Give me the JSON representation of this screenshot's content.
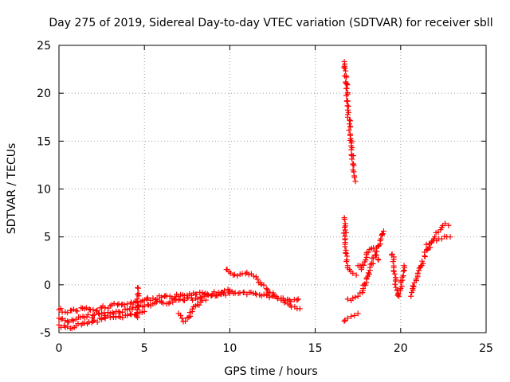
{
  "chart_data": {
    "type": "scatter",
    "title": "Day 275 of 2019, Sidereal Day-to-day VTEC variation (SDTVAR) for receiver sbll",
    "xlabel": "GPS time / hours",
    "ylabel": "SDTVAR / TECUs",
    "xlim": [
      0,
      25
    ],
    "ylim": [
      -5,
      25
    ],
    "xticks": [
      "0",
      "5",
      "10",
      "15",
      "20",
      "25"
    ],
    "yticks": [
      "-5",
      "0",
      "5",
      "10",
      "15",
      "20",
      "25"
    ],
    "grid": true,
    "marker": "+",
    "series_color": "#ff0000",
    "segments": [
      {
        "name": "main-lower-a",
        "x": [
          0,
          0.5,
          1,
          1.5,
          2,
          2.5,
          3,
          3.5,
          4,
          4.5,
          5,
          5.5,
          6,
          6.5,
          7,
          7.5,
          8,
          8.5,
          9,
          9.5,
          10,
          10.5,
          11,
          11.5,
          12,
          12.5,
          13,
          13.5,
          14
        ],
        "y": [
          -3.5,
          -3.8,
          -3.6,
          -3.4,
          -3.2,
          -3.0,
          -3.0,
          -2.8,
          -2.6,
          -2.4,
          -2.2,
          -2.0,
          -1.8,
          -1.8,
          -1.6,
          -1.4,
          -1.4,
          -1.2,
          -1.0,
          -1.0,
          -0.9,
          -0.9,
          -1.0,
          -0.9,
          -1.0,
          -1.2,
          -1.4,
          -1.6,
          -1.5
        ]
      },
      {
        "name": "main-lower-b",
        "x": [
          0,
          0.5,
          1,
          1.5,
          2,
          2.5,
          3,
          3.5,
          4,
          4.5,
          5
        ],
        "y": [
          -4.2,
          -4.4,
          -4.3,
          -4.0,
          -3.8,
          -3.6,
          -3.4,
          -3.3,
          -3.2,
          -3.1,
          -2.8
        ]
      },
      {
        "name": "main-upper",
        "x": [
          0,
          0.5,
          1,
          1.5,
          2,
          2.5,
          3,
          3.5,
          4,
          4.5,
          5,
          5.5,
          6,
          6.5,
          7,
          7.5,
          8,
          8.5,
          9,
          9.5,
          10
        ],
        "y": [
          -2.6,
          -2.9,
          -2.7,
          -2.5,
          -2.6,
          -2.4,
          -2.2,
          -2.0,
          -2.0,
          -1.8,
          -1.6,
          -1.4,
          -1.3,
          -1.2,
          -1.2,
          -1.1,
          -1.0,
          -1.0,
          -1.0,
          -0.8,
          -0.6
        ]
      },
      {
        "name": "dip-7h",
        "x": [
          7.0,
          7.2,
          7.4,
          7.6,
          7.8,
          8.0,
          8.3,
          8.6
        ],
        "y": [
          -3.0,
          -3.5,
          -3.8,
          -3.4,
          -2.8,
          -2.2,
          -1.8,
          -1.6
        ]
      },
      {
        "name": "arc-10-14h",
        "x": [
          9.8,
          10.2,
          10.6,
          11.0,
          11.4,
          11.8,
          12.2,
          12.6,
          13.0,
          13.4,
          13.8,
          14.1
        ],
        "y": [
          1.6,
          1.0,
          1.1,
          1.3,
          0.9,
          0.2,
          -0.5,
          -1.2,
          -1.6,
          -2.0,
          -2.3,
          -2.5
        ]
      },
      {
        "name": "spike-4.5h",
        "x": [
          4.6,
          4.6,
          4.6,
          4.6,
          4.6
        ],
        "y": [
          -0.3,
          -1.0,
          -1.8,
          -2.6,
          -3.4
        ]
      },
      {
        "name": "steep-16.7h",
        "x": [
          16.7,
          16.8,
          16.85,
          16.9,
          16.95,
          17.0,
          17.05,
          17.1,
          17.15,
          17.2,
          17.25,
          17.3,
          17.35
        ],
        "y": [
          23.3,
          21.8,
          20.5,
          19.2,
          18.0,
          16.8,
          15.6,
          14.5,
          13.5,
          12.6,
          11.8,
          11.2,
          10.8
        ]
      },
      {
        "name": "drop-16.7h",
        "x": [
          16.7,
          16.72,
          16.75,
          16.8,
          16.85,
          16.9,
          17.0,
          17.2,
          17.4
        ],
        "y": [
          7.0,
          6.0,
          4.8,
          3.6,
          2.6,
          2.0,
          1.6,
          1.2,
          1.0
        ]
      },
      {
        "name": "low-16.8h",
        "x": [
          16.7,
          16.9,
          17.1,
          17.3,
          17.5
        ],
        "y": [
          -3.8,
          -3.5,
          -3.3,
          -3.2,
          -3.0
        ]
      },
      {
        "name": "rise-17-19h",
        "x": [
          16.9,
          17.2,
          17.5,
          17.8,
          18.0,
          18.2,
          18.4,
          18.6,
          18.8,
          19.0
        ],
        "y": [
          -1.5,
          -1.4,
          -1.2,
          -0.6,
          0.6,
          1.8,
          2.8,
          3.5,
          4.6,
          5.6
        ]
      },
      {
        "name": "loop-17.5-18.7h",
        "x": [
          17.5,
          17.7,
          17.9,
          18.1,
          18.3,
          18.5,
          18.7
        ],
        "y": [
          2.0,
          1.6,
          2.4,
          3.4,
          3.8,
          3.5,
          2.6
        ]
      },
      {
        "name": "wave-19.5-20.2h",
        "x": [
          19.5,
          19.6,
          19.7,
          19.8,
          19.9,
          20.0,
          20.1,
          20.2
        ],
        "y": [
          3.2,
          1.8,
          0.4,
          -0.6,
          -1.2,
          -0.4,
          0.8,
          2.0
        ]
      },
      {
        "name": "wave-20.5-21h",
        "x": [
          20.6,
          20.7,
          20.8,
          20.9,
          21.0
        ],
        "y": [
          -1.2,
          -0.4,
          0.2,
          0.6,
          1.0
        ]
      },
      {
        "name": "rise-21-23h",
        "x": [
          21.0,
          21.2,
          21.4,
          21.6,
          21.8,
          22.0,
          22.2,
          22.4,
          22.6,
          22.8
        ],
        "y": [
          1.2,
          2.0,
          3.0,
          3.8,
          4.4,
          5.0,
          5.5,
          6.0,
          6.4,
          6.2
        ]
      },
      {
        "name": "band-21.5-23h",
        "x": [
          21.5,
          21.8,
          22.1,
          22.4,
          22.7,
          22.9
        ],
        "y": [
          4.2,
          4.4,
          4.6,
          4.8,
          5.0,
          5.0
        ]
      }
    ]
  }
}
